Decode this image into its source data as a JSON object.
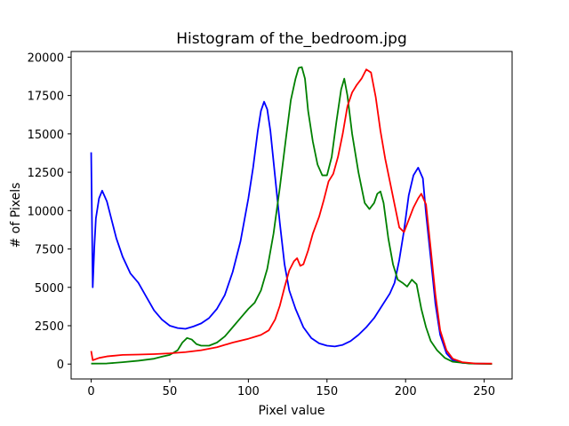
{
  "chart_data": {
    "type": "line",
    "title": "Histogram of the_bedroom.jpg",
    "xlabel": "Pixel value",
    "ylabel": "# of Pixels",
    "xlim": [
      -12.75,
      267.75
    ],
    "ylim": [
      -970,
      20370
    ],
    "xticks": [
      0,
      50,
      100,
      150,
      200,
      250
    ],
    "yticks": [
      0,
      2500,
      5000,
      7500,
      10000,
      12500,
      15000,
      17500,
      20000
    ],
    "grid": false,
    "legend": "none",
    "series": [
      {
        "color": "#0000ff",
        "points": [
          [
            0,
            13800
          ],
          [
            1,
            5000
          ],
          [
            2,
            7600
          ],
          [
            3,
            9500
          ],
          [
            5,
            10800
          ],
          [
            7,
            11300
          ],
          [
            10,
            10600
          ],
          [
            13,
            9400
          ],
          [
            16,
            8200
          ],
          [
            20,
            7000
          ],
          [
            25,
            5900
          ],
          [
            30,
            5300
          ],
          [
            35,
            4400
          ],
          [
            40,
            3500
          ],
          [
            45,
            2900
          ],
          [
            50,
            2500
          ],
          [
            55,
            2350
          ],
          [
            60,
            2300
          ],
          [
            65,
            2450
          ],
          [
            70,
            2650
          ],
          [
            75,
            3000
          ],
          [
            80,
            3600
          ],
          [
            85,
            4500
          ],
          [
            90,
            6000
          ],
          [
            95,
            8000
          ],
          [
            100,
            10800
          ],
          [
            103,
            12800
          ],
          [
            106,
            15200
          ],
          [
            108,
            16500
          ],
          [
            110,
            17100
          ],
          [
            112,
            16600
          ],
          [
            114,
            15200
          ],
          [
            117,
            12200
          ],
          [
            120,
            9200
          ],
          [
            123,
            6500
          ],
          [
            126,
            4800
          ],
          [
            130,
            3600
          ],
          [
            135,
            2400
          ],
          [
            140,
            1700
          ],
          [
            145,
            1350
          ],
          [
            150,
            1200
          ],
          [
            155,
            1150
          ],
          [
            160,
            1250
          ],
          [
            165,
            1500
          ],
          [
            170,
            1900
          ],
          [
            175,
            2400
          ],
          [
            180,
            3000
          ],
          [
            185,
            3800
          ],
          [
            190,
            4600
          ],
          [
            193,
            5300
          ],
          [
            196,
            6800
          ],
          [
            199,
            8700
          ],
          [
            202,
            11000
          ],
          [
            205,
            12300
          ],
          [
            208,
            12800
          ],
          [
            211,
            12100
          ],
          [
            213,
            9800
          ],
          [
            216,
            6900
          ],
          [
            219,
            3900
          ],
          [
            222,
            1900
          ],
          [
            226,
            700
          ],
          [
            230,
            250
          ],
          [
            236,
            80
          ],
          [
            244,
            30
          ],
          [
            255,
            20
          ]
        ]
      },
      {
        "color": "#008000",
        "points": [
          [
            0,
            30
          ],
          [
            10,
            40
          ],
          [
            20,
            120
          ],
          [
            30,
            220
          ],
          [
            40,
            350
          ],
          [
            45,
            480
          ],
          [
            50,
            600
          ],
          [
            55,
            900
          ],
          [
            58,
            1400
          ],
          [
            61,
            1700
          ],
          [
            64,
            1600
          ],
          [
            67,
            1300
          ],
          [
            70,
            1200
          ],
          [
            75,
            1200
          ],
          [
            80,
            1400
          ],
          [
            85,
            1800
          ],
          [
            90,
            2400
          ],
          [
            95,
            3000
          ],
          [
            100,
            3600
          ],
          [
            104,
            4000
          ],
          [
            108,
            4800
          ],
          [
            112,
            6200
          ],
          [
            116,
            8500
          ],
          [
            120,
            11500
          ],
          [
            124,
            14800
          ],
          [
            127,
            17200
          ],
          [
            130,
            18600
          ],
          [
            132,
            19300
          ],
          [
            134,
            19350
          ],
          [
            136,
            18600
          ],
          [
            138,
            16500
          ],
          [
            141,
            14500
          ],
          [
            144,
            13000
          ],
          [
            147,
            12300
          ],
          [
            150,
            12300
          ],
          [
            153,
            13500
          ],
          [
            156,
            15800
          ],
          [
            159,
            17900
          ],
          [
            161,
            18600
          ],
          [
            163,
            17500
          ],
          [
            166,
            15000
          ],
          [
            170,
            12500
          ],
          [
            174,
            10500
          ],
          [
            177,
            10100
          ],
          [
            180,
            10500
          ],
          [
            182,
            11100
          ],
          [
            184,
            11250
          ],
          [
            186,
            10500
          ],
          [
            189,
            8200
          ],
          [
            192,
            6500
          ],
          [
            195,
            5500
          ],
          [
            198,
            5300
          ],
          [
            201,
            5050
          ],
          [
            204,
            5500
          ],
          [
            207,
            5200
          ],
          [
            210,
            3600
          ],
          [
            213,
            2400
          ],
          [
            216,
            1500
          ],
          [
            220,
            900
          ],
          [
            225,
            400
          ],
          [
            230,
            150
          ],
          [
            240,
            40
          ],
          [
            255,
            10
          ]
        ]
      },
      {
        "color": "#ff0000",
        "points": [
          [
            0,
            850
          ],
          [
            1,
            250
          ],
          [
            5,
            400
          ],
          [
            10,
            500
          ],
          [
            20,
            600
          ],
          [
            30,
            620
          ],
          [
            40,
            650
          ],
          [
            50,
            700
          ],
          [
            60,
            780
          ],
          [
            70,
            900
          ],
          [
            80,
            1100
          ],
          [
            90,
            1400
          ],
          [
            100,
            1650
          ],
          [
            108,
            1900
          ],
          [
            113,
            2200
          ],
          [
            117,
            2900
          ],
          [
            120,
            3800
          ],
          [
            123,
            5000
          ],
          [
            126,
            6100
          ],
          [
            129,
            6700
          ],
          [
            131,
            6900
          ],
          [
            133,
            6400
          ],
          [
            135,
            6500
          ],
          [
            138,
            7400
          ],
          [
            141,
            8500
          ],
          [
            145,
            9600
          ],
          [
            148,
            10700
          ],
          [
            151,
            11900
          ],
          [
            154,
            12400
          ],
          [
            157,
            13500
          ],
          [
            160,
            15000
          ],
          [
            163,
            16800
          ],
          [
            166,
            17700
          ],
          [
            169,
            18200
          ],
          [
            172,
            18600
          ],
          [
            175,
            19200
          ],
          [
            178,
            19000
          ],
          [
            181,
            17400
          ],
          [
            184,
            15200
          ],
          [
            187,
            13400
          ],
          [
            190,
            11900
          ],
          [
            193,
            10400
          ],
          [
            196,
            8900
          ],
          [
            199,
            8600
          ],
          [
            202,
            9400
          ],
          [
            205,
            10200
          ],
          [
            208,
            10800
          ],
          [
            210,
            11100
          ],
          [
            213,
            10400
          ],
          [
            216,
            7500
          ],
          [
            219,
            4500
          ],
          [
            222,
            2200
          ],
          [
            226,
            900
          ],
          [
            230,
            350
          ],
          [
            236,
            120
          ],
          [
            244,
            40
          ],
          [
            255,
            30
          ]
        ]
      }
    ]
  }
}
